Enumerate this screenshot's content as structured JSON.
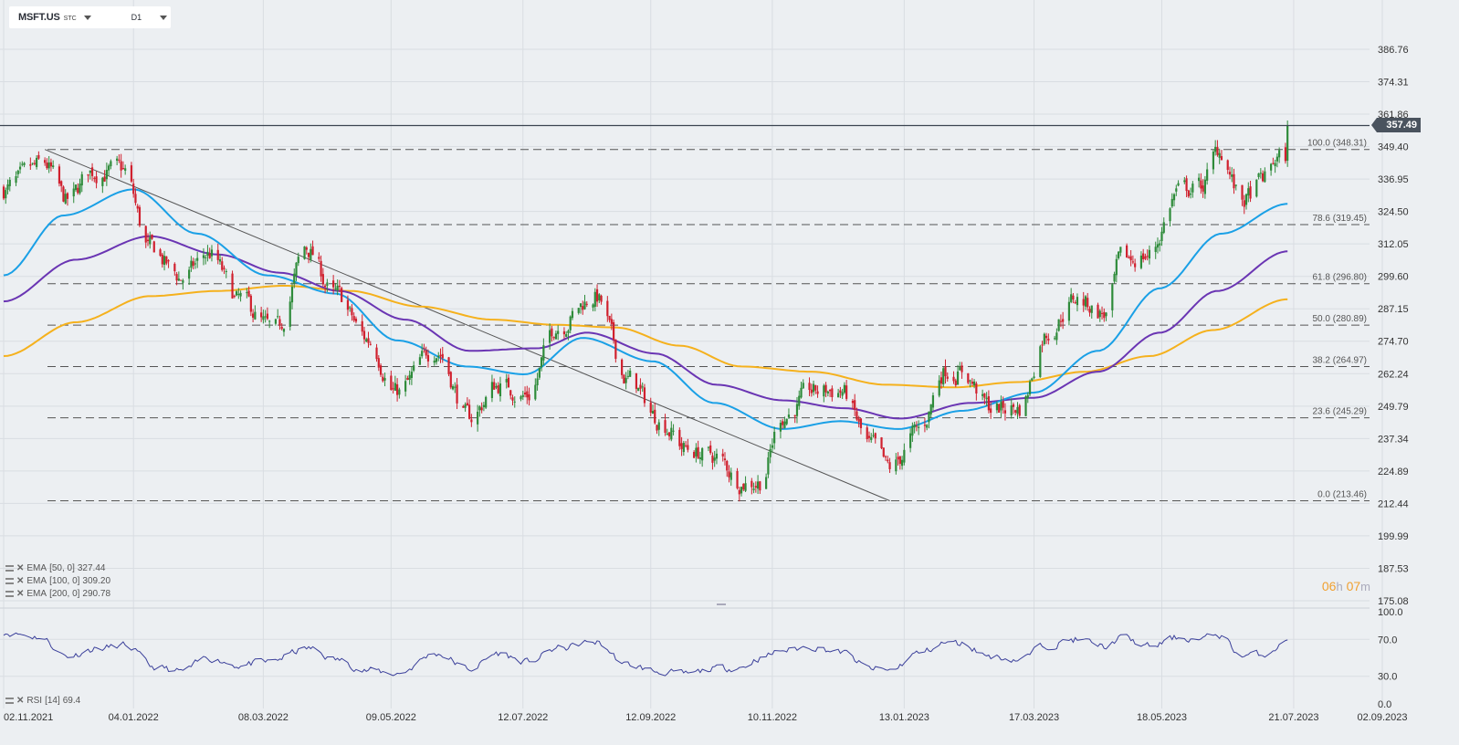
{
  "toolbar": {
    "symbol": "MSFT.US",
    "symbol_suffix": "STC",
    "timeframe": "D1"
  },
  "last_price_label": "357.49",
  "countdown": {
    "hours": "06",
    "h_unit": "h",
    "minutes": "07",
    "m_unit": "m"
  },
  "indicators": [
    {
      "label": "EMA",
      "params": "[50, 0]",
      "value": "327.44",
      "color": "#1aa0e6"
    },
    {
      "label": "EMA",
      "params": "[100, 0]",
      "value": "309.20",
      "color": "#6a35b3"
    },
    {
      "label": "EMA",
      "params": "[200, 0]",
      "value": "290.78",
      "color": "#f5b11d"
    }
  ],
  "rsi": {
    "label": "RSI",
    "params": "[14]",
    "value": "69.4"
  },
  "chart_data": [
    {
      "type": "candlestick",
      "title": "MSFT.US",
      "timeframe": "D1",
      "x_ticks": [
        "02.11.2021",
        "04.01.2022",
        "08.03.2022",
        "09.05.2022",
        "12.07.2022",
        "12.09.2022",
        "10.11.2022",
        "13.01.2023",
        "17.03.2023",
        "18.05.2023",
        "21.07.2023",
        "02.09.2023"
      ],
      "y_ticks": [
        "386.76",
        "374.31",
        "361.86",
        "349.40",
        "336.95",
        "324.50",
        "312.05",
        "299.60",
        "287.15",
        "274.70",
        "262.24",
        "249.79",
        "237.34",
        "224.89",
        "212.44",
        "199.99",
        "187.53",
        "175.08"
      ],
      "ylim": [
        175.08,
        386.76
      ],
      "last_price": 357.49,
      "fibonacci": [
        {
          "label": "100.0 (348.31)",
          "value": 348.31
        },
        {
          "label": "78.6 (319.45)",
          "value": 319.45
        },
        {
          "label": "61.8 (296.80)",
          "value": 296.8
        },
        {
          "label": "50.0 (280.89)",
          "value": 280.89
        },
        {
          "label": "38.2 (264.97)",
          "value": 264.97
        },
        {
          "label": "23.6 (245.29)",
          "value": 245.29
        },
        {
          "label": "0.0 (213.46)",
          "value": 213.46
        }
      ],
      "trendline": {
        "from": [
          "2021-11-22",
          348.31
        ],
        "to": [
          "2023-01-06",
          213.46
        ]
      },
      "colors": {
        "up": "#2e8b3a",
        "down": "#d0202e",
        "ema50": "#1aa0e6",
        "ema100": "#6a35b3",
        "ema200": "#f5b11d"
      },
      "price_path": [
        {
          "d": "2021-11-02",
          "v": 333
        },
        {
          "d": "2021-11-22",
          "v": 342
        },
        {
          "d": "2021-12-03",
          "v": 328
        },
        {
          "d": "2021-12-15",
          "v": 340
        },
        {
          "d": "2021-12-30",
          "v": 340
        },
        {
          "d": "2022-01-12",
          "v": 310
        },
        {
          "d": "2022-01-27",
          "v": 299
        },
        {
          "d": "2022-02-10",
          "v": 308
        },
        {
          "d": "2022-02-24",
          "v": 290
        },
        {
          "d": "2022-03-14",
          "v": 278
        },
        {
          "d": "2022-03-29",
          "v": 310
        },
        {
          "d": "2022-04-12",
          "v": 292
        },
        {
          "d": "2022-04-28",
          "v": 275
        },
        {
          "d": "2022-05-12",
          "v": 255
        },
        {
          "d": "2022-05-31",
          "v": 272
        },
        {
          "d": "2022-06-16",
          "v": 245
        },
        {
          "d": "2022-06-30",
          "v": 258
        },
        {
          "d": "2022-07-14",
          "v": 254
        },
        {
          "d": "2022-07-29",
          "v": 281
        },
        {
          "d": "2022-08-16",
          "v": 292
        },
        {
          "d": "2022-09-01",
          "v": 260
        },
        {
          "d": "2022-09-16",
          "v": 245
        },
        {
          "d": "2022-09-30",
          "v": 233
        },
        {
          "d": "2022-10-13",
          "v": 230
        },
        {
          "d": "2022-10-26",
          "v": 221
        },
        {
          "d": "2022-11-04",
          "v": 221
        },
        {
          "d": "2022-11-15",
          "v": 246
        },
        {
          "d": "2022-11-30",
          "v": 255
        },
        {
          "d": "2022-12-13",
          "v": 256
        },
        {
          "d": "2022-12-28",
          "v": 234
        },
        {
          "d": "2023-01-06",
          "v": 225
        },
        {
          "d": "2023-01-20",
          "v": 240
        },
        {
          "d": "2023-02-02",
          "v": 264
        },
        {
          "d": "2023-02-10",
          "v": 263
        },
        {
          "d": "2023-02-24",
          "v": 249
        },
        {
          "d": "2023-03-10",
          "v": 249
        },
        {
          "d": "2023-03-23",
          "v": 278
        },
        {
          "d": "2023-04-06",
          "v": 291
        },
        {
          "d": "2023-04-21",
          "v": 285
        },
        {
          "d": "2023-04-28",
          "v": 305
        },
        {
          "d": "2023-05-12",
          "v": 308
        },
        {
          "d": "2023-05-26",
          "v": 332
        },
        {
          "d": "2023-06-06",
          "v": 334
        },
        {
          "d": "2023-06-15",
          "v": 348
        },
        {
          "d": "2023-06-26",
          "v": 328
        },
        {
          "d": "2023-07-07",
          "v": 337
        },
        {
          "d": "2023-07-13",
          "v": 345
        },
        {
          "d": "2023-07-17",
          "v": 345
        },
        {
          "d": "2023-07-18",
          "v": 357
        }
      ],
      "ema50": [
        {
          "d": "2021-11-02",
          "v": 300
        },
        {
          "d": "2021-12-01",
          "v": 323
        },
        {
          "d": "2022-01-04",
          "v": 333
        },
        {
          "d": "2022-02-04",
          "v": 316
        },
        {
          "d": "2022-03-10",
          "v": 300
        },
        {
          "d": "2022-04-12",
          "v": 293
        },
        {
          "d": "2022-05-12",
          "v": 275
        },
        {
          "d": "2022-06-15",
          "v": 265
        },
        {
          "d": "2022-07-13",
          "v": 262
        },
        {
          "d": "2022-08-10",
          "v": 276
        },
        {
          "d": "2022-09-13",
          "v": 267
        },
        {
          "d": "2022-10-13",
          "v": 251
        },
        {
          "d": "2022-11-15",
          "v": 241
        },
        {
          "d": "2022-12-13",
          "v": 244
        },
        {
          "d": "2023-01-10",
          "v": 241
        },
        {
          "d": "2023-02-10",
          "v": 248
        },
        {
          "d": "2023-03-17",
          "v": 255
        },
        {
          "d": "2023-04-17",
          "v": 271
        },
        {
          "d": "2023-05-17",
          "v": 295
        },
        {
          "d": "2023-06-16",
          "v": 316
        },
        {
          "d": "2023-07-18",
          "v": 327.44
        }
      ],
      "ema100": [
        {
          "d": "2021-11-02",
          "v": 290
        },
        {
          "d": "2021-12-07",
          "v": 306
        },
        {
          "d": "2022-01-12",
          "v": 315
        },
        {
          "d": "2022-02-14",
          "v": 308
        },
        {
          "d": "2022-03-16",
          "v": 301
        },
        {
          "d": "2022-04-14",
          "v": 294
        },
        {
          "d": "2022-05-16",
          "v": 283
        },
        {
          "d": "2022-06-16",
          "v": 271
        },
        {
          "d": "2022-07-19",
          "v": 272
        },
        {
          "d": "2022-08-12",
          "v": 278
        },
        {
          "d": "2022-09-14",
          "v": 270
        },
        {
          "d": "2022-10-14",
          "v": 258
        },
        {
          "d": "2022-11-15",
          "v": 252
        },
        {
          "d": "2022-12-15",
          "v": 249
        },
        {
          "d": "2023-01-11",
          "v": 245
        },
        {
          "d": "2023-02-14",
          "v": 251
        },
        {
          "d": "2023-03-17",
          "v": 253
        },
        {
          "d": "2023-04-17",
          "v": 263
        },
        {
          "d": "2023-05-17",
          "v": 278
        },
        {
          "d": "2023-06-14",
          "v": 294
        },
        {
          "d": "2023-07-18",
          "v": 309.2
        }
      ],
      "ema200": [
        {
          "d": "2021-11-02",
          "v": 269
        },
        {
          "d": "2021-12-07",
          "v": 282
        },
        {
          "d": "2022-01-12",
          "v": 292
        },
        {
          "d": "2022-02-14",
          "v": 294
        },
        {
          "d": "2022-03-18",
          "v": 296
        },
        {
          "d": "2022-04-19",
          "v": 294
        },
        {
          "d": "2022-05-23",
          "v": 288
        },
        {
          "d": "2022-06-27",
          "v": 283
        },
        {
          "d": "2022-07-28",
          "v": 281
        },
        {
          "d": "2022-08-26",
          "v": 280
        },
        {
          "d": "2022-09-26",
          "v": 273
        },
        {
          "d": "2022-10-26",
          "v": 265
        },
        {
          "d": "2022-11-29",
          "v": 263
        },
        {
          "d": "2023-01-04",
          "v": 258
        },
        {
          "d": "2023-02-06",
          "v": 257
        },
        {
          "d": "2023-03-09",
          "v": 259
        },
        {
          "d": "2023-04-11",
          "v": 263
        },
        {
          "d": "2023-05-12",
          "v": 269
        },
        {
          "d": "2023-06-12",
          "v": 279
        },
        {
          "d": "2023-07-18",
          "v": 290.78
        }
      ]
    },
    {
      "type": "line",
      "title": "RSI [14]",
      "ylim": [
        0,
        100
      ],
      "y_ticks": [
        "100.0",
        "70.0",
        "30.0",
        "0.0"
      ],
      "values": [
        {
          "d": "2021-11-02",
          "v": 78
        },
        {
          "d": "2021-11-19",
          "v": 73
        },
        {
          "d": "2021-12-03",
          "v": 52
        },
        {
          "d": "2021-12-17",
          "v": 60
        },
        {
          "d": "2021-12-31",
          "v": 63
        },
        {
          "d": "2022-01-14",
          "v": 40
        },
        {
          "d": "2022-01-27",
          "v": 35
        },
        {
          "d": "2022-02-10",
          "v": 50
        },
        {
          "d": "2022-02-24",
          "v": 42
        },
        {
          "d": "2022-03-09",
          "v": 45
        },
        {
          "d": "2022-03-30",
          "v": 60
        },
        {
          "d": "2022-04-12",
          "v": 48
        },
        {
          "d": "2022-04-28",
          "v": 36
        },
        {
          "d": "2022-05-12",
          "v": 33
        },
        {
          "d": "2022-05-31",
          "v": 55
        },
        {
          "d": "2022-06-16",
          "v": 38
        },
        {
          "d": "2022-06-30",
          "v": 55
        },
        {
          "d": "2022-07-14",
          "v": 45
        },
        {
          "d": "2022-07-29",
          "v": 60
        },
        {
          "d": "2022-08-16",
          "v": 67
        },
        {
          "d": "2022-09-01",
          "v": 42
        },
        {
          "d": "2022-09-16",
          "v": 35
        },
        {
          "d": "2022-09-30",
          "v": 32
        },
        {
          "d": "2022-10-13",
          "v": 38
        },
        {
          "d": "2022-10-26",
          "v": 40
        },
        {
          "d": "2022-11-04",
          "v": 50
        },
        {
          "d": "2022-11-15",
          "v": 58
        },
        {
          "d": "2022-11-30",
          "v": 62
        },
        {
          "d": "2022-12-13",
          "v": 56
        },
        {
          "d": "2022-12-28",
          "v": 38
        },
        {
          "d": "2023-01-06",
          "v": 36
        },
        {
          "d": "2023-01-20",
          "v": 55
        },
        {
          "d": "2023-02-02",
          "v": 66
        },
        {
          "d": "2023-02-10",
          "v": 65
        },
        {
          "d": "2023-02-24",
          "v": 52
        },
        {
          "d": "2023-03-10",
          "v": 48
        },
        {
          "d": "2023-03-23",
          "v": 64
        },
        {
          "d": "2023-04-06",
          "v": 70
        },
        {
          "d": "2023-04-21",
          "v": 62
        },
        {
          "d": "2023-04-28",
          "v": 72
        },
        {
          "d": "2023-05-12",
          "v": 62
        },
        {
          "d": "2023-05-26",
          "v": 72
        },
        {
          "d": "2023-06-06",
          "v": 70
        },
        {
          "d": "2023-06-15",
          "v": 75
        },
        {
          "d": "2023-06-26",
          "v": 52
        },
        {
          "d": "2023-07-07",
          "v": 54
        },
        {
          "d": "2023-07-13",
          "v": 62
        },
        {
          "d": "2023-07-18",
          "v": 69.4
        }
      ]
    }
  ]
}
